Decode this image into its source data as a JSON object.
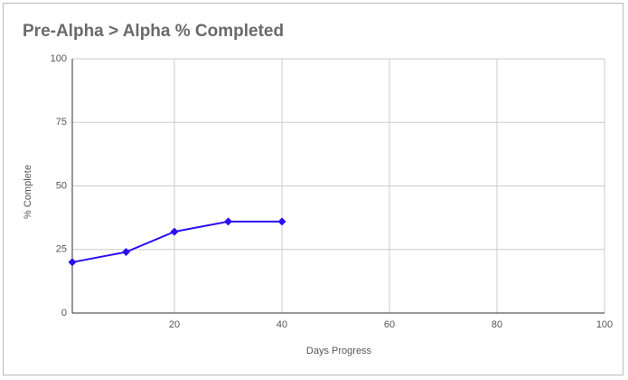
{
  "chart_data": {
    "type": "line",
    "title": "Pre-Alpha > Alpha % Completed",
    "x_label": "Days Progress",
    "y_label": "% Complete",
    "x": [
      1,
      11,
      20,
      30,
      40
    ],
    "values": [
      20,
      24,
      32,
      36,
      36
    ],
    "color": "#2a10f0",
    "xlim": [
      1,
      100
    ],
    "xticks": [
      20,
      40,
      60,
      80,
      100
    ],
    "ylim": [
      0,
      100
    ],
    "yticks": [
      0,
      25,
      50,
      75,
      100
    ],
    "grid": true
  }
}
